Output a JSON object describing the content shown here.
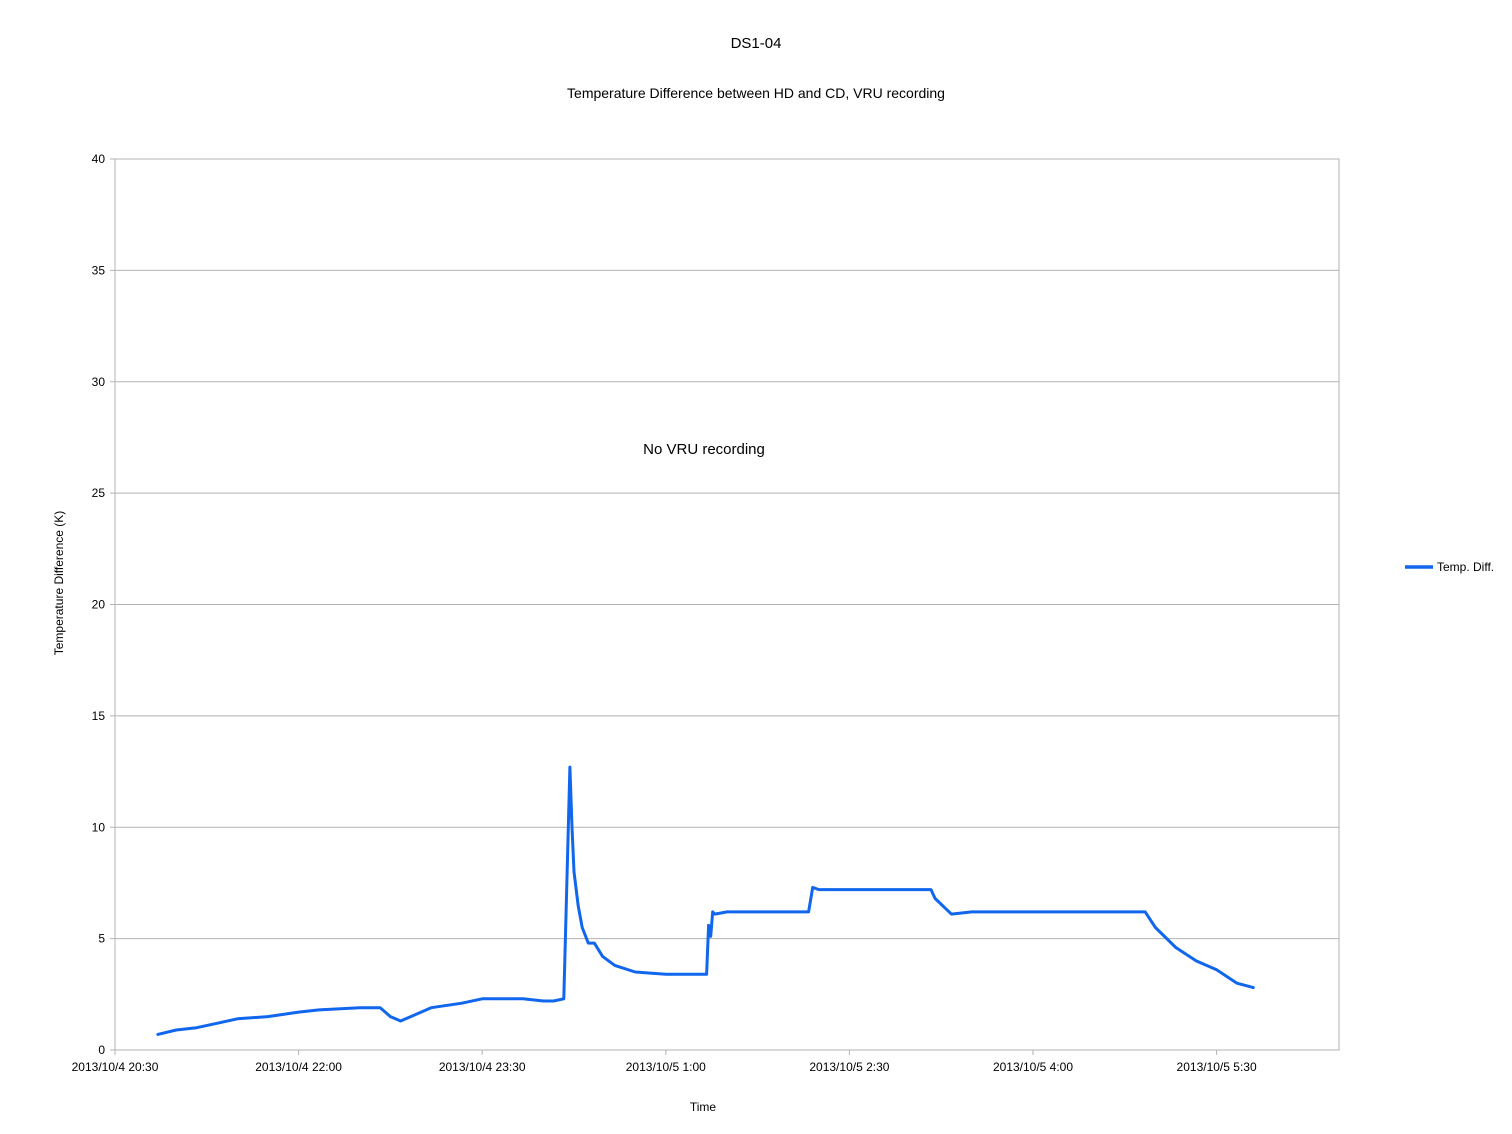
{
  "chart_data": {
    "type": "line",
    "title": "DS1-04",
    "subtitle": "Temperature Difference between HD and CD, VRU recording",
    "xlabel": "Time",
    "ylabel": "Temperature Difference (K)",
    "ylim": [
      0,
      40
    ],
    "yticks": [
      "0",
      "5",
      "10",
      "15",
      "20",
      "25",
      "30",
      "35",
      "40"
    ],
    "xlim": [
      "2013/10/4 20:30",
      "2013/10/5 6:30"
    ],
    "xticks": [
      "2013/10/4 20:30",
      "2013/10/4 22:00",
      "2013/10/4 23:30",
      "2013/10/5 1:00",
      "2013/10/5 2:30",
      "2013/10/5 4:00",
      "2013/10/5 5:30"
    ],
    "grid": true,
    "legend_position": "right",
    "annotation": "No VRU recording",
    "series": [
      {
        "name": "Temp. Diff.",
        "color": "#1166ee",
        "x": [
          "2013/10/4 20:51",
          "2013/10/4 21:00",
          "2013/10/4 21:10",
          "2013/10/4 21:20",
          "2013/10/4 21:30",
          "2013/10/4 21:45",
          "2013/10/4 22:00",
          "2013/10/4 22:10",
          "2013/10/4 22:30",
          "2013/10/4 22:40",
          "2013/10/4 22:45",
          "2013/10/4 22:50",
          "2013/10/4 22:55",
          "2013/10/4 23:05",
          "2013/10/4 23:20",
          "2013/10/4 23:30",
          "2013/10/4 23:50",
          "2013/10/5 0:00",
          "2013/10/5 0:05",
          "2013/10/5 0:10",
          "2013/10/5 0:13",
          "2013/10/5 0:14",
          "2013/10/5 0:15",
          "2013/10/5 0:17",
          "2013/10/5 0:19",
          "2013/10/5 0:22",
          "2013/10/5 0:25",
          "2013/10/5 0:27",
          "2013/10/5 0:29",
          "2013/10/5 0:35",
          "2013/10/5 0:45",
          "2013/10/5 1:00",
          "2013/10/5 1:10",
          "2013/10/5 1:20",
          "2013/10/5 1:21",
          "2013/10/5 1:22",
          "2013/10/5 1:23",
          "2013/10/5 1:24",
          "2013/10/5 1:30",
          "2013/10/5 1:45",
          "2013/10/5 2:00",
          "2013/10/5 2:10",
          "2013/10/5 2:12",
          "2013/10/5 2:15",
          "2013/10/5 2:30",
          "2013/10/5 2:45",
          "2013/10/5 3:00",
          "2013/10/5 3:10",
          "2013/10/5 3:12",
          "2013/10/5 3:20",
          "2013/10/5 3:30",
          "2013/10/5 3:45",
          "2013/10/5 4:00",
          "2013/10/5 4:15",
          "2013/10/5 4:30",
          "2013/10/5 4:45",
          "2013/10/5 4:50",
          "2013/10/5 4:55",
          "2013/10/5 5:00",
          "2013/10/5 5:10",
          "2013/10/5 5:20",
          "2013/10/5 5:30",
          "2013/10/5 5:40",
          "2013/10/5 5:48"
        ],
        "values": [
          0.7,
          0.9,
          1.0,
          1.2,
          1.4,
          1.5,
          1.7,
          1.8,
          1.9,
          1.9,
          1.5,
          1.3,
          1.5,
          1.9,
          2.1,
          2.3,
          2.3,
          2.2,
          2.2,
          2.3,
          12.7,
          10.0,
          8.0,
          6.5,
          5.5,
          4.8,
          4.8,
          4.5,
          4.2,
          3.8,
          3.5,
          3.4,
          3.4,
          3.4,
          5.6,
          5.1,
          6.2,
          6.1,
          6.2,
          6.2,
          6.2,
          6.2,
          7.3,
          7.2,
          7.2,
          7.2,
          7.2,
          7.2,
          6.8,
          6.1,
          6.2,
          6.2,
          6.2,
          6.2,
          6.2,
          6.2,
          6.2,
          6.2,
          5.5,
          4.6,
          4.0,
          3.6,
          3.0,
          2.8
        ]
      }
    ]
  }
}
